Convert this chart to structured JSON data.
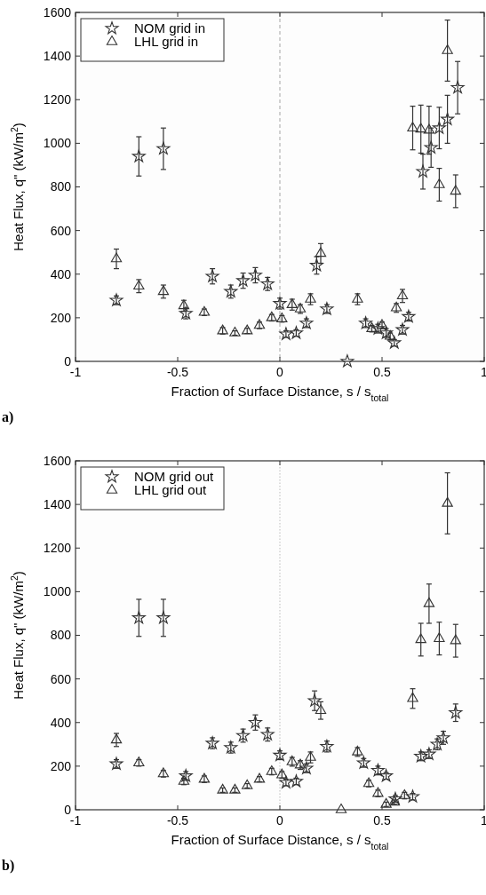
{
  "chart_data": [
    {
      "type": "scatter",
      "xlabel": "Fraction of Surface Distance, s / s$_{total}$",
      "ylabel": "Heat Flux, q\" (kW/m$^{2}$)",
      "xlim": [
        -1,
        1
      ],
      "ylim": [
        0,
        1600
      ],
      "xticks": [
        -1,
        -0.5,
        0,
        0.5,
        1
      ],
      "yticks": [
        0,
        200,
        400,
        600,
        800,
        1000,
        1200,
        1400,
        1600
      ],
      "grid": false,
      "legend": "top left",
      "annotations": [
        "a)"
      ],
      "ref_lines": [
        {
          "axis": "x",
          "value": 0,
          "color": "#bbbbbb",
          "line_style": "dashed"
        }
      ],
      "series": [
        {
          "name": "NOM grid in",
          "color": "#333333",
          "marker": "star",
          "x": [
            -0.8,
            -0.69,
            -0.57,
            -0.46,
            -0.33,
            -0.24,
            -0.18,
            -0.12,
            -0.06,
            0.0,
            0.03,
            0.08,
            0.13,
            0.18,
            0.23,
            0.33,
            0.42,
            0.48,
            0.52,
            0.56,
            0.6,
            0.63,
            0.7,
            0.74,
            0.78,
            0.82,
            0.87
          ],
          "values": [
            280,
            940,
            975,
            220,
            390,
            320,
            370,
            395,
            355,
            265,
            125,
            130,
            175,
            440,
            240,
            0,
            175,
            150,
            130,
            85,
            145,
            205,
            870,
            980,
            1070,
            1110,
            1255
          ],
          "errors": [
            20,
            90,
            95,
            25,
            35,
            30,
            35,
            35,
            30,
            25,
            15,
            15,
            20,
            40,
            20,
            null,
            20,
            20,
            20,
            15,
            20,
            20,
            80,
            90,
            95,
            110,
            120
          ]
        },
        {
          "name": "LHL grid in",
          "color": "#333333",
          "marker": "triangle",
          "x": [
            -0.8,
            -0.69,
            -0.57,
            -0.47,
            -0.37,
            -0.28,
            -0.22,
            -0.16,
            -0.1,
            -0.04,
            0.01,
            0.06,
            0.1,
            0.15,
            0.2,
            0.38,
            0.45,
            0.5,
            0.54,
            0.57,
            0.6,
            0.65,
            0.69,
            0.73,
            0.78,
            0.82,
            0.86
          ],
          "values": [
            470,
            345,
            320,
            255,
            225,
            140,
            130,
            140,
            165,
            200,
            195,
            260,
            240,
            285,
            495,
            285,
            150,
            165,
            115,
            245,
            300,
            1070,
            1065,
            1060,
            810,
            1425,
            780
          ],
          "errors": [
            45,
            30,
            30,
            25,
            15,
            15,
            10,
            12,
            15,
            15,
            15,
            25,
            20,
            25,
            45,
            25,
            15,
            15,
            15,
            20,
            30,
            100,
            110,
            110,
            75,
            140,
            75
          ]
        }
      ]
    },
    {
      "type": "scatter",
      "xlabel": "Fraction of Surface Distance, s / s$_{total}$",
      "ylabel": "Heat Flux, q\" (kW/m$^{2}$)",
      "xlim": [
        -1,
        1
      ],
      "ylim": [
        0,
        1600
      ],
      "xticks": [
        -1,
        -0.5,
        0,
        0.5,
        1
      ],
      "yticks": [
        0,
        200,
        400,
        600,
        800,
        1000,
        1200,
        1400,
        1600
      ],
      "grid": false,
      "legend": "top left",
      "annotations": [
        "b)"
      ],
      "ref_lines": [
        {
          "axis": "x",
          "value": 0,
          "color": "#cccccc",
          "line_style": "dotted"
        }
      ],
      "series": [
        {
          "name": "NOM grid out",
          "color": "#333333",
          "marker": "star",
          "x": [
            -0.8,
            -0.69,
            -0.57,
            -0.46,
            -0.33,
            -0.24,
            -0.18,
            -0.12,
            -0.06,
            0.0,
            0.03,
            0.08,
            0.13,
            0.17,
            0.23,
            0.41,
            0.48,
            0.52,
            0.565,
            0.65,
            0.69,
            0.73,
            0.77,
            0.8,
            0.86
          ],
          "values": [
            210,
            880,
            880,
            155,
            305,
            285,
            340,
            400,
            345,
            250,
            125,
            130,
            190,
            500,
            290,
            215,
            180,
            155,
            50,
            60,
            245,
            255,
            300,
            330,
            445
          ],
          "errors": [
            20,
            85,
            85,
            20,
            25,
            25,
            30,
            35,
            30,
            20,
            15,
            15,
            20,
            45,
            25,
            20,
            20,
            15,
            15,
            15,
            20,
            20,
            25,
            30,
            40
          ]
        },
        {
          "name": "LHL grid out",
          "color": "#333333",
          "marker": "triangle",
          "x": [
            -0.8,
            -0.69,
            -0.57,
            -0.47,
            -0.37,
            -0.28,
            -0.22,
            -0.16,
            -0.1,
            -0.04,
            0.01,
            0.06,
            0.1,
            0.15,
            0.2,
            0.3,
            0.38,
            0.435,
            0.48,
            0.52,
            0.56,
            0.61,
            0.65,
            0.69,
            0.73,
            0.78,
            0.82,
            0.86
          ],
          "values": [
            320,
            215,
            165,
            130,
            140,
            90,
            90,
            110,
            140,
            175,
            160,
            220,
            205,
            240,
            455,
            0,
            265,
            120,
            75,
            25,
            35,
            65,
            510,
            780,
            945,
            785,
            1405,
            775
          ],
          "errors": [
            30,
            15,
            15,
            15,
            15,
            10,
            10,
            10,
            12,
            15,
            15,
            20,
            20,
            25,
            40,
            null,
            20,
            15,
            15,
            10,
            10,
            15,
            45,
            75,
            90,
            75,
            140,
            75
          ]
        }
      ]
    }
  ]
}
